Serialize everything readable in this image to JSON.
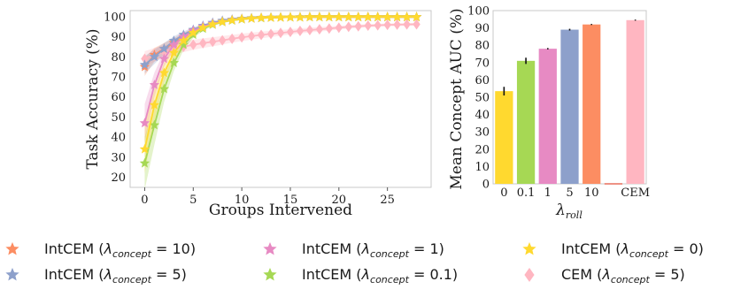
{
  "chart_data": [
    {
      "type": "line",
      "xlabel": "Groups Intervened",
      "ylabel": "Task Accuracy (%)",
      "xlim": [
        -1.5,
        29.5
      ],
      "ylim": [
        15,
        103
      ],
      "xticks": [
        "0",
        "5",
        "10",
        "15",
        "20",
        "25"
      ],
      "yticks": [
        "20",
        "30",
        "40",
        "50",
        "60",
        "70",
        "80",
        "90",
        "100"
      ],
      "grid": false,
      "x": [
        0,
        1,
        2,
        3,
        4,
        5,
        6,
        7,
        8,
        9,
        10,
        11,
        12,
        13,
        14,
        15,
        16,
        17,
        18,
        19,
        20,
        21,
        22,
        23,
        24,
        25,
        26,
        27,
        28
      ],
      "series": [
        {
          "label_key": "intcem10",
          "color": "#fc8d62",
          "marker": "star",
          "values": [
            75,
            81,
            84,
            87,
            90,
            93,
            95,
            96.5,
            97.5,
            98.3,
            98.8,
            99.1,
            99.3,
            99.5,
            99.6,
            99.7,
            99.7,
            99.8,
            99.8,
            99.8,
            99.8,
            99.8,
            99.8,
            99.8,
            99.8,
            99.8,
            99.8,
            99.8,
            99.8
          ]
        },
        {
          "label_key": "intcem5",
          "color": "#8da0cb",
          "marker": "star",
          "values": [
            76,
            80,
            84,
            88,
            91,
            93.5,
            95.5,
            97,
            98,
            98.6,
            99,
            99.3,
            99.5,
            99.6,
            99.7,
            99.7,
            99.8,
            99.8,
            99.8,
            99.8,
            99.8,
            99.8,
            99.8,
            99.8,
            99.8,
            99.8,
            99.8,
            99.8,
            99.8
          ]
        },
        {
          "label_key": "intcem1",
          "color": "#e78ac3",
          "marker": "star",
          "values": [
            47,
            66,
            79,
            86,
            90,
            93,
            95,
            96.5,
            97.5,
            98.3,
            98.8,
            99.1,
            99.4,
            99.5,
            99.6,
            99.7,
            99.7,
            99.8,
            99.8,
            99.8,
            99.8,
            99.8,
            99.8,
            99.8,
            99.8,
            99.8,
            99.8,
            99.8,
            99.8
          ]
        },
        {
          "label_key": "intcem01",
          "color": "#a6d854",
          "marker": "star",
          "values": [
            27,
            46,
            64,
            77,
            86,
            91,
            94,
            96,
            97.3,
            98.1,
            98.7,
            99.1,
            99.3,
            99.5,
            99.6,
            99.7,
            99.7,
            99.8,
            99.8,
            99.8,
            99.8,
            99.8,
            99.8,
            99.8,
            99.8,
            99.8,
            99.8,
            99.8,
            99.8
          ]
        },
        {
          "label_key": "intcem0",
          "color": "#ffd92f",
          "marker": "star",
          "values": [
            34,
            56,
            72,
            82,
            88,
            92,
            94.5,
            96.2,
            97.4,
            98.2,
            98.8,
            99.1,
            99.4,
            99.5,
            99.6,
            99.7,
            99.7,
            99.8,
            99.8,
            99.8,
            99.8,
            99.8,
            99.8,
            99.8,
            99.8,
            99.8,
            99.8,
            99.8,
            99.8
          ]
        },
        {
          "label_key": "cem5",
          "color": "#ffb6c1",
          "marker": "diamond",
          "values": [
            79,
            81,
            82.5,
            84,
            85,
            86,
            86.8,
            87.5,
            88.2,
            89,
            89.7,
            90.3,
            90.9,
            91.4,
            91.9,
            92.4,
            92.9,
            93.3,
            93.7,
            94.1,
            94.5,
            94.9,
            95.2,
            95.5,
            95.7,
            95.9,
            96,
            96.1,
            96.2
          ]
        }
      ]
    },
    {
      "type": "bar",
      "xlabel": "λroll",
      "ylabel": "Mean Concept AUC (%)",
      "ylim": [
        0,
        100
      ],
      "yticks": [
        "0",
        "10",
        "20",
        "30",
        "40",
        "50",
        "60",
        "70",
        "80",
        "90",
        "100"
      ],
      "grid": false,
      "categories": [
        "0",
        "0.1",
        "1",
        "5",
        "10",
        "",
        "CEM"
      ],
      "values": [
        53.5,
        71,
        78,
        89,
        92,
        0.3,
        94.5
      ],
      "errors": [
        2.5,
        1.8,
        0.4,
        0.5,
        0.3,
        0,
        0.3
      ],
      "colors": [
        "#ffd92f",
        "#a6d854",
        "#e78ac3",
        "#8da0cb",
        "#fc8d62",
        "#e24a33",
        "#ffb6c1"
      ]
    }
  ],
  "legend": [
    {
      "key": "intcem10",
      "text": "IntCEM (",
      "sym": "λ",
      "sub": "concept",
      "rest": " = 10)",
      "color": "#fc8d62",
      "marker": "star"
    },
    {
      "key": "intcem1",
      "text": "IntCEM (",
      "sym": "λ",
      "sub": "concept",
      "rest": " = 1)",
      "color": "#e78ac3",
      "marker": "star"
    },
    {
      "key": "intcem0",
      "text": "IntCEM (",
      "sym": "λ",
      "sub": "concept",
      "rest": " = 0)",
      "color": "#ffd92f",
      "marker": "star"
    },
    {
      "key": "intcem5",
      "text": "IntCEM (",
      "sym": "λ",
      "sub": "concept",
      "rest": " = 5)",
      "color": "#8da0cb",
      "marker": "star"
    },
    {
      "key": "intcem01",
      "text": "IntCEM (",
      "sym": "λ",
      "sub": "concept",
      "rest": " = 0.1)",
      "color": "#a6d854",
      "marker": "star"
    },
    {
      "key": "cem5",
      "text": "CEM (",
      "sym": "λ",
      "sub": "concept",
      "rest": " = 5)",
      "color": "#ffb6c1",
      "marker": "diamond"
    }
  ],
  "bar_xlabel_parts": {
    "sym": "λ",
    "sub": "roll"
  }
}
